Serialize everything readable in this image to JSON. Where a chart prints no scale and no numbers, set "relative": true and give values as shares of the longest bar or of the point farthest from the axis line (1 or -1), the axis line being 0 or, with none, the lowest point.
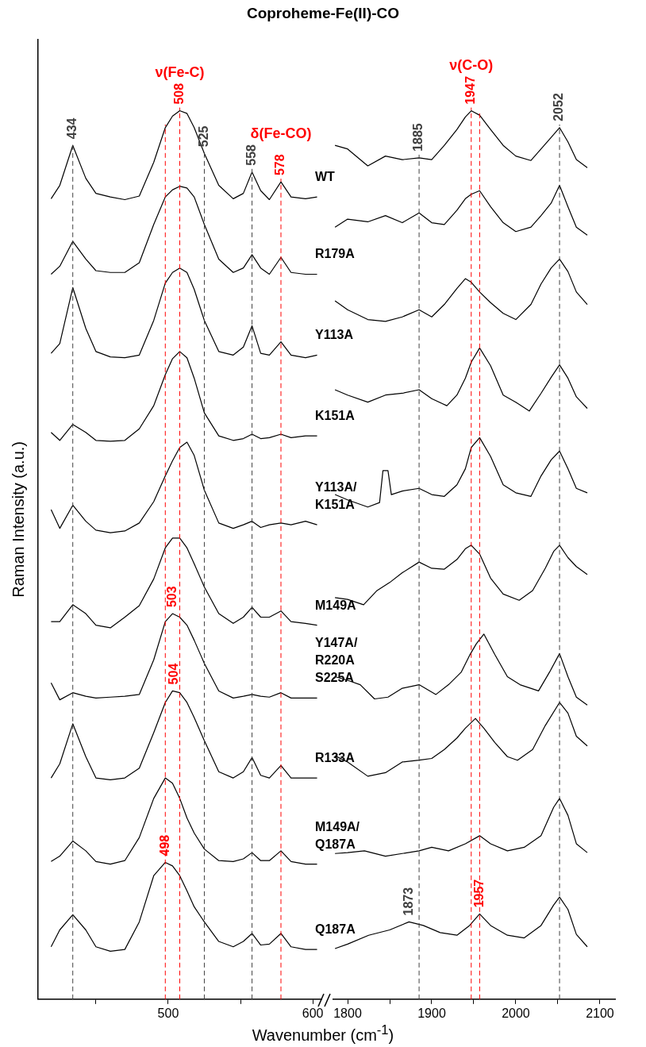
{
  "chart_data": [
    {
      "type": "line",
      "title": "Coproheme-Fe(II)-CO",
      "xlabel": "Wavenumber (cm$^{-1}$)",
      "ylabel": "Raman Intensity (a.u.)",
      "relative": true,
      "marker": "none",
      "line_style": "solid",
      "xlim": [
        410,
        606
      ],
      "xticks": [
        {
          "value": 450,
          "label": null
        },
        500,
        {
          "value": 550,
          "label": null
        },
        600
      ],
      "x": [
        419,
        425,
        434,
        443,
        450,
        460,
        470,
        480,
        490,
        498,
        503,
        508,
        513,
        518,
        525,
        535,
        545,
        552,
        558,
        564,
        570,
        578,
        585,
        595,
        603
      ],
      "ref_lines": [
        {
          "axis": "x",
          "value": 434,
          "label": "434",
          "color": "#404040",
          "line_style": "dashed"
        },
        {
          "axis": "x",
          "value": 508,
          "label": "508",
          "color": "#ff0000",
          "line_style": "dashed"
        },
        {
          "axis": "x",
          "value": 525,
          "label": "525",
          "color": "#404040",
          "line_style": "dashed"
        },
        {
          "axis": "x",
          "value": 558,
          "label": "558",
          "color": "#404040",
          "line_style": "dashed"
        },
        {
          "axis": "x",
          "value": 578,
          "label": "578",
          "color": "#ff0000",
          "line_style": "dashed"
        },
        {
          "axis": "x",
          "value": 498,
          "color": "#ff0000",
          "line_style": "dashed"
        }
      ],
      "annotations": [
        {
          "text": "ν(Fe-C)",
          "x": 508,
          "y": 1
        },
        {
          "text": "δ(Fe-CO)",
          "x": 578,
          "y": 0.92
        },
        {
          "text": "503",
          "x": 503,
          "y": 0.434
        },
        {
          "text": "504",
          "x": 504,
          "y": 0.347
        },
        {
          "text": "498",
          "x": 498,
          "y": 0.154
        }
      ],
      "series": [
        {
          "name": "WT",
          "color": "#000000",
          "values": [
            0.901,
            0.916,
            0.961,
            0.924,
            0.907,
            0.903,
            0.9,
            0.904,
            0.942,
            0.981,
            0.994,
            1,
            0.997,
            0.981,
            0.952,
            0.916,
            0.901,
            0.907,
            0.931,
            0.91,
            0.9,
            0.92,
            0.903,
            0.901,
            0.903
          ]
        },
        {
          "name": "R179A",
          "color": "#000000",
          "values": [
            0.816,
            0.825,
            0.853,
            0.833,
            0.82,
            0.818,
            0.818,
            0.829,
            0.872,
            0.903,
            0.911,
            0.915,
            0.913,
            0.903,
            0.872,
            0.833,
            0.818,
            0.823,
            0.838,
            0.823,
            0.816,
            0.835,
            0.818,
            0.816,
            0.816
          ]
        },
        {
          "name": "Y113A",
          "color": "#000000",
          "values": [
            0.727,
            0.738,
            0.801,
            0.755,
            0.729,
            0.723,
            0.722,
            0.725,
            0.764,
            0.806,
            0.818,
            0.823,
            0.818,
            0.799,
            0.764,
            0.729,
            0.725,
            0.734,
            0.758,
            0.727,
            0.725,
            0.74,
            0.725,
            0.722,
            0.725
          ]
        },
        {
          "name": "K151A",
          "color": "#000000",
          "values": [
            0.638,
            0.629,
            0.647,
            0.638,
            0.629,
            0.628,
            0.629,
            0.642,
            0.668,
            0.703,
            0.721,
            0.729,
            0.722,
            0.699,
            0.66,
            0.634,
            0.629,
            0.631,
            0.636,
            0.631,
            0.632,
            0.636,
            0.632,
            0.634,
            0.634
          ]
        },
        {
          "name": "Y113A/\nK151A",
          "color": "#000000",
          "values": [
            0.551,
            0.53,
            0.556,
            0.538,
            0.528,
            0.525,
            0.527,
            0.536,
            0.56,
            0.589,
            0.606,
            0.621,
            0.627,
            0.612,
            0.573,
            0.536,
            0.53,
            0.534,
            0.538,
            0.531,
            0.534,
            0.536,
            0.534,
            0.538,
            0.534
          ]
        },
        {
          "name": "M149A",
          "color": "#000000",
          "values": [
            0.425,
            0.425,
            0.444,
            0.434,
            0.421,
            0.418,
            0.43,
            0.443,
            0.473,
            0.508,
            0.519,
            0.519,
            0.508,
            0.49,
            0.464,
            0.434,
            0.423,
            0.43,
            0.441,
            0.43,
            0.43,
            0.437,
            0.425,
            0.423,
            0.421
          ]
        },
        {
          "name": "Y147A/\nR220A\nS225A",
          "color": "#000000",
          "values": [
            0.356,
            0.337,
            0.345,
            0.341,
            0.339,
            0.34,
            0.341,
            0.343,
            0.382,
            0.425,
            0.434,
            0.43,
            0.421,
            0.404,
            0.378,
            0.347,
            0.339,
            0.341,
            0.343,
            0.341,
            0.34,
            0.345,
            0.339,
            0.339,
            0.339
          ]
        },
        {
          "name": "R133A",
          "color": "#000000",
          "values": [
            0.249,
            0.265,
            0.31,
            0.273,
            0.249,
            0.247,
            0.249,
            0.26,
            0.3,
            0.334,
            0.347,
            0.345,
            0.334,
            0.317,
            0.291,
            0.256,
            0.249,
            0.256,
            0.272,
            0.252,
            0.249,
            0.263,
            0.249,
            0.249,
            0.249
          ]
        },
        {
          "name": "M149A/\nQ187A",
          "color": "#000000",
          "values": [
            0.155,
            0.161,
            0.178,
            0.167,
            0.155,
            0.152,
            0.156,
            0.182,
            0.226,
            0.249,
            0.243,
            0.226,
            0.204,
            0.187,
            0.169,
            0.156,
            0.155,
            0.158,
            0.165,
            0.156,
            0.156,
            0.167,
            0.155,
            0.152,
            0.152
          ]
        },
        {
          "name": "Q187A",
          "color": "#000000",
          "values": [
            0.059,
            0.078,
            0.095,
            0.078,
            0.059,
            0.054,
            0.056,
            0.087,
            0.139,
            0.154,
            0.15,
            0.139,
            0.122,
            0.104,
            0.087,
            0.065,
            0.059,
            0.065,
            0.074,
            0.061,
            0.062,
            0.074,
            0.059,
            0.056,
            0.056
          ]
        }
      ]
    },
    {
      "type": "line",
      "relative": true,
      "marker": "none",
      "line_style": "solid",
      "xlim": [
        1783,
        2118
      ],
      "xticks": [
        1800,
        {
          "value": 1850,
          "label": null
        },
        1900,
        {
          "value": 1950,
          "label": null
        },
        2000,
        {
          "value": 2050,
          "label": null
        },
        2100
      ],
      "ref_lines": [
        {
          "axis": "x",
          "value": 1885,
          "label": "1885",
          "color": "#404040",
          "line_style": "dashed"
        },
        {
          "axis": "x",
          "value": 1947,
          "label": "1947",
          "color": "#ff0000",
          "line_style": "dashed"
        },
        {
          "axis": "x",
          "value": 2052,
          "label": "2052",
          "color": "#404040",
          "line_style": "dashed"
        },
        {
          "axis": "x",
          "value": 1957,
          "color": "#ff0000",
          "line_style": "dashed"
        }
      ],
      "annotations": [
        {
          "text": "ν(C-O)",
          "x": 1947,
          "y": 1
        },
        {
          "text": "1957",
          "x": 1957,
          "y": 0.096
        },
        {
          "text": "1873",
          "x": 1873,
          "y": 0.087
        }
      ],
      "series": [
        {
          "color": "#000000",
          "x": [
            1785,
            1800,
            1824,
            1845,
            1865,
            1885,
            1900,
            1915,
            1930,
            1940,
            1947,
            1957,
            1970,
            1985,
            2000,
            2018,
            2030,
            2042,
            2052,
            2062,
            2072,
            2085
          ],
          "values": [
            0.961,
            0.957,
            0.938,
            0.949,
            0.945,
            0.947,
            0.945,
            0.961,
            0.979,
            0.993,
            1,
            0.995,
            0.979,
            0.961,
            0.949,
            0.944,
            0.957,
            0.97,
            0.981,
            0.965,
            0.945,
            0.936
          ]
        },
        {
          "color": "#000000",
          "x": [
            1785,
            1800,
            1824,
            1845,
            1865,
            1885,
            1900,
            1915,
            1930,
            1940,
            1947,
            1957,
            1970,
            1985,
            2000,
            2018,
            2030,
            2042,
            2052,
            2062,
            2072,
            2085
          ],
          "values": [
            0.869,
            0.878,
            0.875,
            0.882,
            0.874,
            0.885,
            0.874,
            0.872,
            0.888,
            0.901,
            0.906,
            0.91,
            0.892,
            0.874,
            0.864,
            0.869,
            0.882,
            0.896,
            0.916,
            0.892,
            0.869,
            0.86
          ]
        },
        {
          "color": "#000000",
          "x": [
            1785,
            1800,
            1824,
            1845,
            1865,
            1885,
            1900,
            1915,
            1930,
            1940,
            1947,
            1957,
            1970,
            1985,
            2000,
            2018,
            2030,
            2042,
            2052,
            2062,
            2072,
            2085
          ],
          "values": [
            0.786,
            0.776,
            0.765,
            0.763,
            0.768,
            0.776,
            0.768,
            0.782,
            0.8,
            0.811,
            0.807,
            0.796,
            0.784,
            0.772,
            0.765,
            0.782,
            0.805,
            0.823,
            0.833,
            0.819,
            0.796,
            0.782
          ]
        },
        {
          "color": "#000000",
          "x": [
            1785,
            1800,
            1824,
            1845,
            1865,
            1885,
            1900,
            1918,
            1930,
            1940,
            1947,
            1957,
            1970,
            1985,
            2000,
            2016,
            2030,
            2042,
            2052,
            2062,
            2072,
            2085
          ],
          "values": [
            0.686,
            0.68,
            0.672,
            0.68,
            0.682,
            0.686,
            0.676,
            0.668,
            0.68,
            0.699,
            0.717,
            0.733,
            0.713,
            0.68,
            0.672,
            0.662,
            0.682,
            0.7,
            0.714,
            0.699,
            0.678,
            0.665
          ]
        },
        {
          "color": "#000000",
          "x": [
            1785,
            1800,
            1824,
            1838,
            1842,
            1848,
            1852,
            1865,
            1885,
            1900,
            1915,
            1930,
            1940,
            1947,
            1957,
            1970,
            1985,
            2000,
            2018,
            2030,
            2042,
            2052,
            2062,
            2072,
            2085
          ],
          "values": [
            0.568,
            0.562,
            0.554,
            0.559,
            0.595,
            0.595,
            0.568,
            0.572,
            0.575,
            0.568,
            0.566,
            0.579,
            0.597,
            0.621,
            0.632,
            0.611,
            0.579,
            0.57,
            0.566,
            0.589,
            0.607,
            0.617,
            0.597,
            0.575,
            0.57
          ]
        },
        {
          "color": "#000000",
          "x": [
            1785,
            1800,
            1819,
            1835,
            1850,
            1865,
            1885,
            1900,
            1915,
            1930,
            1940,
            1947,
            1957,
            1970,
            1985,
            2004,
            2020,
            2035,
            2045,
            2052,
            2062,
            2072,
            2085
          ],
          "values": [
            0.452,
            0.45,
            0.444,
            0.46,
            0.469,
            0.48,
            0.492,
            0.485,
            0.484,
            0.495,
            0.507,
            0.511,
            0.501,
            0.474,
            0.456,
            0.449,
            0.46,
            0.485,
            0.504,
            0.511,
            0.497,
            0.487,
            0.478
          ]
        },
        {
          "color": "#000000",
          "x": [
            1785,
            1800,
            1815,
            1832,
            1848,
            1865,
            1885,
            1905,
            1920,
            1935,
            1945,
            1953,
            1962,
            1975,
            1990,
            2005,
            2027,
            2040,
            2052,
            2062,
            2072,
            2085
          ],
          "values": [
            0.363,
            0.359,
            0.354,
            0.338,
            0.34,
            0.35,
            0.354,
            0.343,
            0.354,
            0.368,
            0.387,
            0.4,
            0.411,
            0.388,
            0.363,
            0.354,
            0.347,
            0.368,
            0.389,
            0.363,
            0.34,
            0.331
          ]
        },
        {
          "color": "#000000",
          "x": [
            1785,
            1800,
            1824,
            1845,
            1865,
            1885,
            1900,
            1915,
            1930,
            1940,
            1952,
            1962,
            1975,
            1990,
            2002,
            2020,
            2035,
            2052,
            2062,
            2072,
            2085
          ],
          "values": [
            0.274,
            0.267,
            0.251,
            0.255,
            0.267,
            0.269,
            0.271,
            0.281,
            0.294,
            0.305,
            0.316,
            0.305,
            0.289,
            0.273,
            0.269,
            0.281,
            0.308,
            0.334,
            0.322,
            0.296,
            0.285
          ]
        },
        {
          "color": "#000000",
          "x": [
            1785,
            1800,
            1820,
            1845,
            1865,
            1885,
            1900,
            1920,
            1940,
            1957,
            1970,
            1990,
            2010,
            2030,
            2045,
            2052,
            2062,
            2072,
            2085
          ],
          "values": [
            0.164,
            0.165,
            0.167,
            0.161,
            0.164,
            0.167,
            0.171,
            0.167,
            0.175,
            0.184,
            0.175,
            0.167,
            0.171,
            0.184,
            0.216,
            0.226,
            0.207,
            0.175,
            0.165
          ]
        },
        {
          "color": "#000000",
          "x": [
            1785,
            1800,
            1825,
            1850,
            1873,
            1890,
            1910,
            1930,
            1945,
            1957,
            1970,
            1990,
            2010,
            2030,
            2045,
            2052,
            2062,
            2072,
            2085
          ],
          "values": [
            0.057,
            0.062,
            0.072,
            0.078,
            0.087,
            0.083,
            0.075,
            0.072,
            0.083,
            0.096,
            0.083,
            0.072,
            0.069,
            0.083,
            0.106,
            0.115,
            0.101,
            0.073,
            0.059
          ]
        }
      ]
    }
  ]
}
